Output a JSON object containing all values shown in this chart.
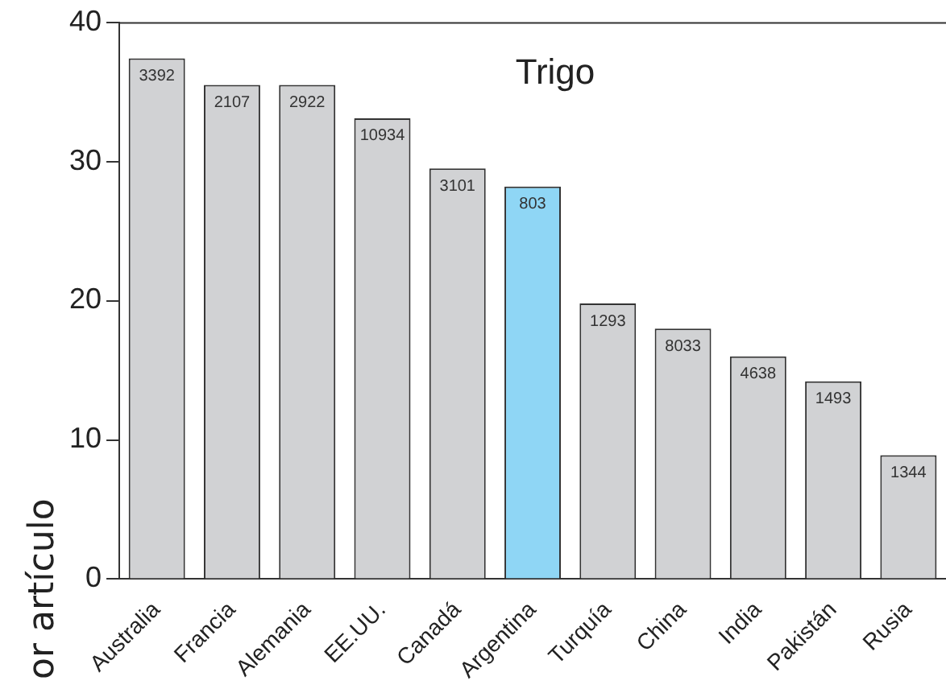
{
  "chart_data": {
    "type": "bar",
    "title": "Trigo",
    "ylabel": "or artículo",
    "categories": [
      "Australia",
      "Francia",
      "Alemania",
      "EE.UU.",
      "Canadá",
      "Argentina",
      "Turquía",
      "China",
      "India",
      "Pakistán",
      "Rusia"
    ],
    "values": [
      37.4,
      35.5,
      35.5,
      33.1,
      29.5,
      28.2,
      19.8,
      18.0,
      16.0,
      14.2,
      8.9
    ],
    "colors": [
      "#d1d2d4",
      "#d1d2d4",
      "#d1d2d4",
      "#d1d2d4",
      "#d1d2d4",
      "#8fd6f5",
      "#d1d2d4",
      "#d1d2d4",
      "#d1d2d4",
      "#d1d2d4",
      "#d1d2d4"
    ],
    "ylim": [
      0,
      40
    ],
    "yticks": [
      0,
      10,
      20,
      30,
      40
    ],
    "grid": false,
    "legend": false,
    "annotations": [
      {
        "text": "3392",
        "x": "Australia",
        "y": 37.4
      },
      {
        "text": "2107",
        "x": "Francia",
        "y": 35.5
      },
      {
        "text": "2922",
        "x": "Alemania",
        "y": 35.5
      },
      {
        "text": "10934",
        "x": "EE.UU.",
        "y": 33.1
      },
      {
        "text": "3101",
        "x": "Canadá",
        "y": 29.5
      },
      {
        "text": "803",
        "x": "Argentina",
        "y": 28.2
      },
      {
        "text": "1293",
        "x": "Turquía",
        "y": 19.8
      },
      {
        "text": "8033",
        "x": "China",
        "y": 18.0
      },
      {
        "text": "4638",
        "x": "India",
        "y": 16.0
      },
      {
        "text": "1493",
        "x": "Pakistán",
        "y": 14.2
      },
      {
        "text": "1344",
        "x": "Rusia",
        "y": 8.9
      }
    ]
  }
}
